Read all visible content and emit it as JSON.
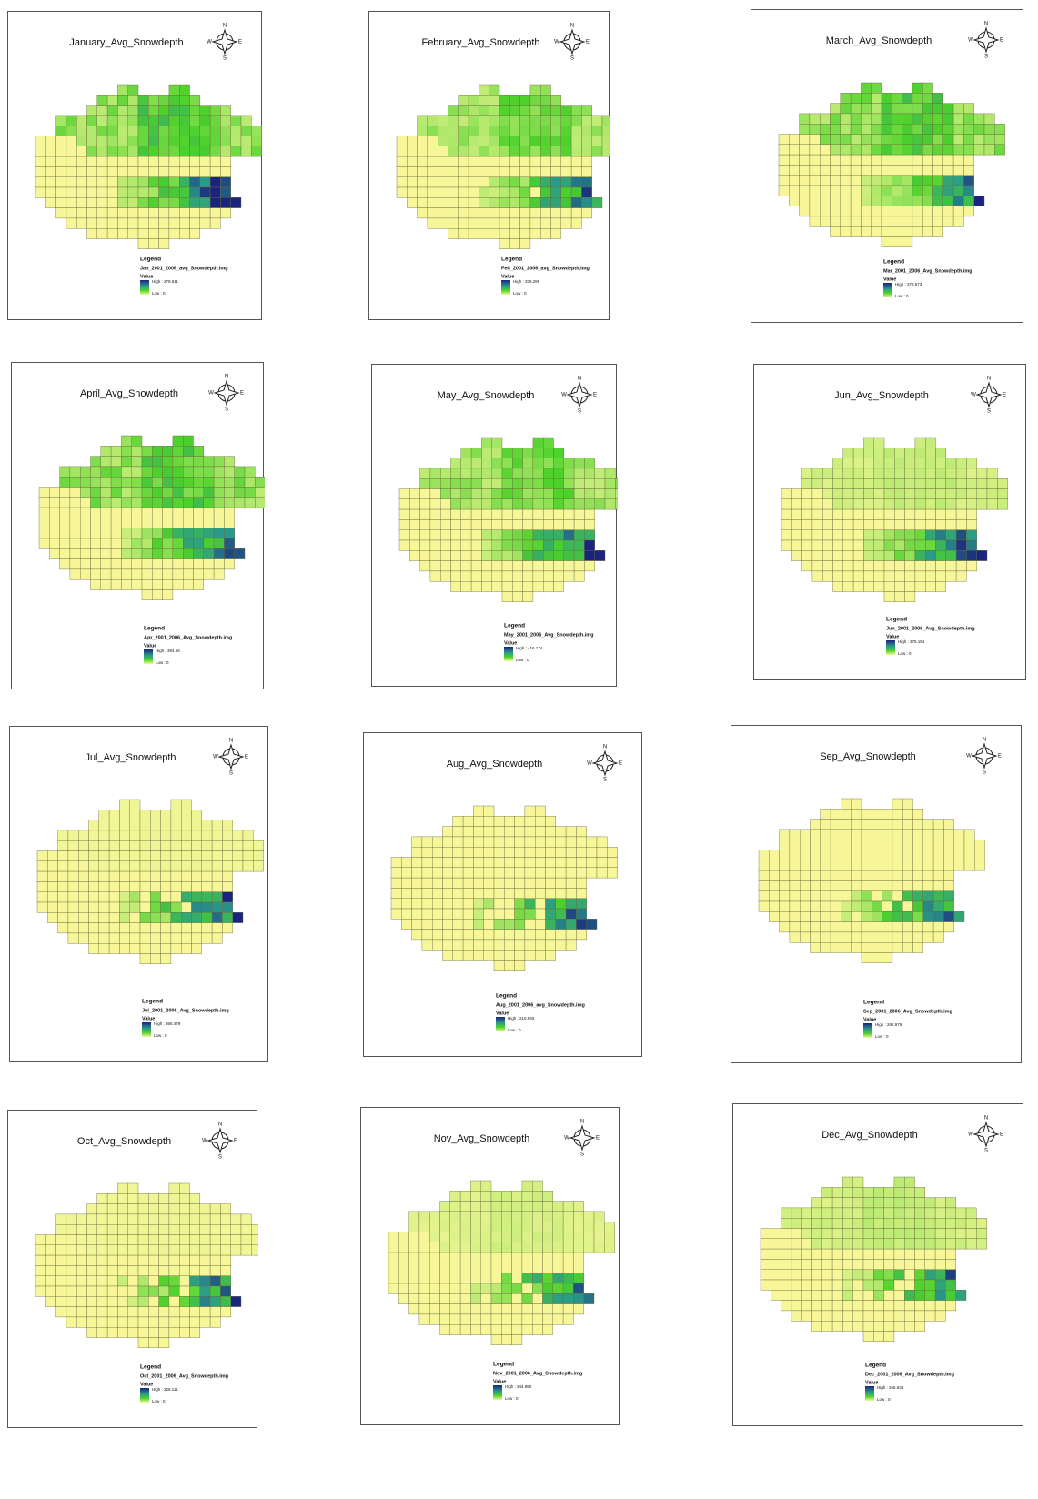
{
  "compass": {
    "n": "N",
    "e": "E",
    "s": "S",
    "w": "W"
  },
  "legend": {
    "heading": "Legend",
    "value": "Value",
    "low": "Low : 0"
  },
  "panels": [
    {
      "title": "January_Avg_Snowdepth",
      "file": "Jan_2001_2006_avg_Snowdepth.img",
      "high": "High : 279.611"
    },
    {
      "title": "February_Avg_Snowdepth",
      "file": "Feb_2001_2006_avg_Snowdepth.img",
      "high": "High : 339.286"
    },
    {
      "title": "March_Avg_Snowdepth",
      "file": "Mar_2001_2006_Avg_Snowdepth.img",
      "high": "High : 378.673"
    },
    {
      "title": "April_Avg_Snowdepth",
      "file": "Apr_2001_2006_Avg_Snowdepth.img",
      "high": "High : 394.66"
    },
    {
      "title": "May_Avg_Snowdepth",
      "file": "May_2001_2006_Avg_Snowdepth.img",
      "high": "High : 416.174"
    },
    {
      "title": "Jun_Avg_Snowdepth",
      "file": "Jun_2001_2006_Avg_Snowdepth.img",
      "high": "High : 376.154"
    },
    {
      "title": "Jul_Avg_Snowdepth",
      "file": "Jul_2001_2006_Avg_Snowdepth.img",
      "high": "High : 366.479"
    },
    {
      "title": "Aug_Avg_Snowdepth",
      "file": "Aug_2001_2006_avg_Snowdepth.img",
      "high": "High : 210.993"
    },
    {
      "title": "Sep_Avg_Snowdepth",
      "file": "Sep_2001_2006_Avg_Snowdepth.img",
      "high": "High : 262.976"
    },
    {
      "title": "Oct_Avg_Snowdepth",
      "file": "Oct_2001_2006_Avg_Snowdepth.img",
      "high": "High : 226.111"
    },
    {
      "title": "Nov_Avg_Snowdepth",
      "file": "Nov_2001_2006_Avg_Snowdepth.img",
      "high": "High : 244.980"
    },
    {
      "title": "Dec_Avg_Snowdepth",
      "file": "Dec_2001_2006_Avg_Snowdepth.img",
      "high": "High : 265.638"
    }
  ]
}
